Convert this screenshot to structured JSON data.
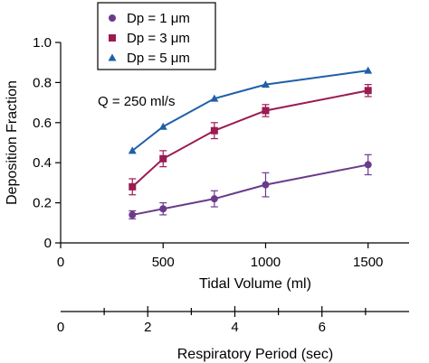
{
  "chart_data": {
    "type": "line",
    "ylabel": "Deposition Fraction",
    "xlabel": "Tidal Volume (ml)",
    "x2label": "Respiratory Period (sec)",
    "annotation": "Q = 250 ml/s",
    "xlim": [
      0,
      1700
    ],
    "ylim": [
      0,
      1.0
    ],
    "x_ticks": [
      0,
      500,
      1000,
      1500
    ],
    "y_ticks": [
      0,
      0.2,
      0.4,
      0.6,
      0.8,
      1.0
    ],
    "y_tick_labels": [
      "0",
      "0.2",
      "0.4",
      "0.6",
      "0.8",
      "1.0"
    ],
    "x2_ticks": [
      0,
      2,
      4,
      6
    ],
    "x2_tick_labels": [
      "0",
      "2",
      "4",
      "6"
    ],
    "x2_lim": [
      0,
      8
    ],
    "legend_position": "top-left",
    "x": [
      350,
      500,
      750,
      1000,
      1500
    ],
    "series": [
      {
        "name": "Dp = 1 μm",
        "color": "#6b3a8c",
        "marker": "circle",
        "values": [
          0.14,
          0.17,
          0.22,
          0.29,
          0.39
        ],
        "errors": [
          0.02,
          0.03,
          0.04,
          0.06,
          0.05
        ]
      },
      {
        "name": "Dp = 3 μm",
        "color": "#9b1b52",
        "marker": "square",
        "values": [
          0.28,
          0.42,
          0.56,
          0.66,
          0.76
        ],
        "errors": [
          0.04,
          0.04,
          0.04,
          0.03,
          0.03
        ]
      },
      {
        "name": "Dp = 5 μm",
        "color": "#1f5fa8",
        "marker": "triangle",
        "values": [
          0.46,
          0.58,
          0.72,
          0.79,
          0.86
        ],
        "errors": [
          0,
          0,
          0,
          0,
          0
        ]
      }
    ]
  }
}
